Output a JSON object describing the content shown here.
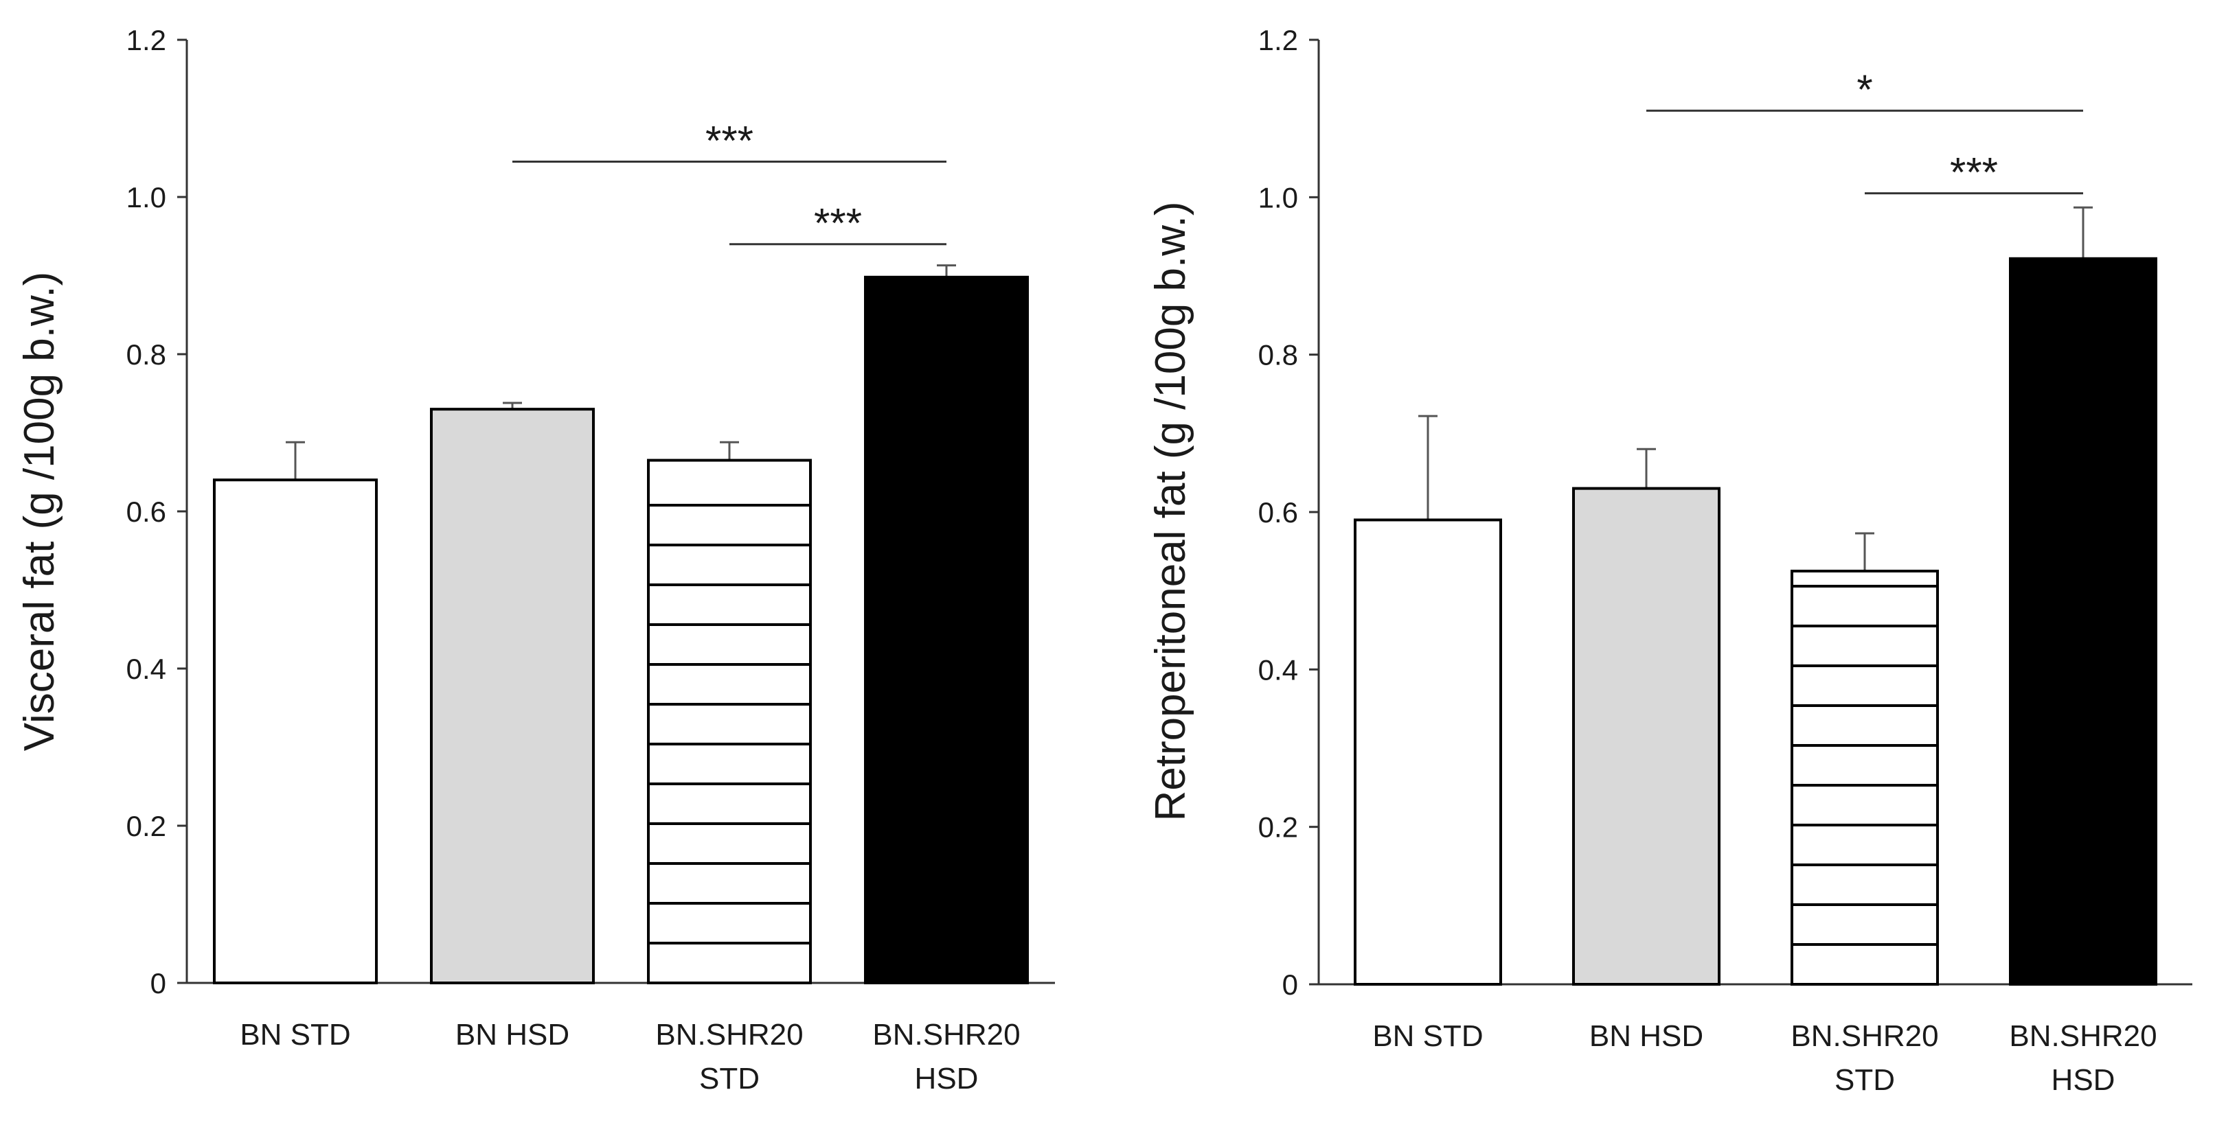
{
  "chart_data": [
    {
      "type": "bar",
      "title": "",
      "xlabel": "",
      "ylabel": "Visceral fat (g /100g b.w.)",
      "ylim": [
        0,
        1.2
      ],
      "yticks": [
        "0",
        "0.2",
        "0.4",
        "0.6",
        "0.8",
        "1.0",
        "1.2"
      ],
      "grid": false,
      "categories": [
        {
          "line1": "BN STD",
          "line2": ""
        },
        {
          "line1": "BN HSD",
          "line2": ""
        },
        {
          "line1": "BN.SHR20",
          "line2": "STD"
        },
        {
          "line1": "BN.SHR20",
          "line2": "HSD"
        }
      ],
      "values": [
        0.64,
        0.73,
        0.665,
        0.898
      ],
      "errors": [
        0.048,
        0.008,
        0.023,
        0.015
      ],
      "fills": [
        "white",
        "lightgray",
        "striped",
        "black"
      ],
      "colors": {
        "white": "#ffffff",
        "lightgray": "#d9d9d9",
        "black": "#000000",
        "stroke": "#000000"
      },
      "significance": [
        {
          "from": 1,
          "to": 3,
          "label": "***",
          "level": 1.045
        },
        {
          "from": 2,
          "to": 3,
          "label": "***",
          "level": 0.94
        }
      ]
    },
    {
      "type": "bar",
      "title": "",
      "xlabel": "",
      "ylabel": "Retroperitoneal fat (g /100g b.w.)",
      "ylim": [
        0,
        1.2
      ],
      "yticks": [
        "0",
        "0.2",
        "0.4",
        "0.6",
        "0.8",
        "1.0",
        "1.2"
      ],
      "grid": false,
      "categories": [
        {
          "line1": "BN STD",
          "line2": ""
        },
        {
          "line1": "BN HSD",
          "line2": ""
        },
        {
          "line1": "BN.SHR20",
          "line2": "STD"
        },
        {
          "line1": "BN.SHR20",
          "line2": "HSD"
        }
      ],
      "values": [
        0.59,
        0.63,
        0.525,
        0.922
      ],
      "errors": [
        0.132,
        0.05,
        0.048,
        0.065
      ],
      "fills": [
        "white",
        "lightgray",
        "striped",
        "black"
      ],
      "colors": {
        "white": "#ffffff",
        "lightgray": "#d9d9d9",
        "black": "#000000",
        "stroke": "#000000"
      },
      "significance": [
        {
          "from": 1,
          "to": 3,
          "label": "*",
          "level": 1.11
        },
        {
          "from": 2,
          "to": 3,
          "label": "***",
          "level": 1.005
        }
      ]
    }
  ]
}
